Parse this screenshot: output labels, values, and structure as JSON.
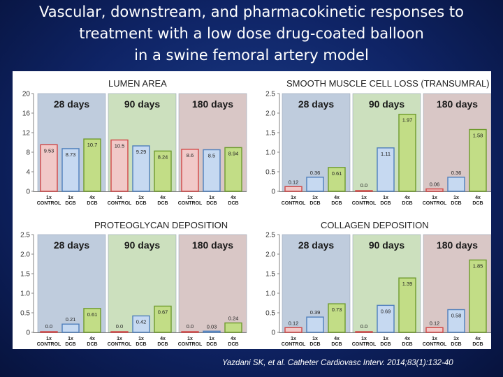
{
  "slide": {
    "title_lines": [
      "Vascular, downstream, and pharmacokinetic responses to",
      "treatment with a low dose drug-coated balloon",
      "in a swine femoral artery model"
    ],
    "citation": "Yazdani SK, et al. Catheter Cardiovasc Interv. 2014;83(1):132-40"
  },
  "colors": {
    "group_backgrounds": [
      "#bfccdd",
      "#cce0be",
      "#d9c7c6"
    ],
    "control": "#f1c9c8",
    "control_border": "#d24746",
    "dcb_1x": "#c6d9f1",
    "dcb_1x_border": "#4f7fbc",
    "dcb_4x": "#c2dd86",
    "dcb_4x_border": "#6f9b2e"
  },
  "chart_data": [
    {
      "type": "bar",
      "title": "LUMEN AREA",
      "groups": [
        "28 days",
        "90 days",
        "180 days"
      ],
      "categories": [
        "1x CONTROL",
        "1x DCB",
        "4x DCB"
      ],
      "series": [
        {
          "name": "1x CONTROL",
          "values": [
            9.53,
            10.5,
            8.6
          ],
          "labels": [
            "9.53",
            "10.5",
            "8.6"
          ]
        },
        {
          "name": "1x DCB",
          "values": [
            8.73,
            9.29,
            8.5
          ],
          "labels": [
            "8.73",
            "9.29",
            "8.5"
          ]
        },
        {
          "name": "4x DCB",
          "values": [
            10.7,
            8.24,
            8.94
          ],
          "labels": [
            "10.7",
            "8.24",
            "8.94"
          ]
        }
      ],
      "ylim": [
        0,
        20
      ],
      "yticks": [
        "0",
        "4",
        "8",
        "12",
        "16",
        "20"
      ],
      "ytick_values": [
        0,
        4,
        8,
        12,
        16,
        20
      ]
    },
    {
      "type": "bar",
      "title": "SMOOTH MUSCLE CELL LOSS (TRANSUMRAL)",
      "groups": [
        "28 days",
        "90 days",
        "180 days"
      ],
      "categories": [
        "1x CONTROL",
        "1x DCB",
        "4x DCB"
      ],
      "series": [
        {
          "name": "1x CONTROL",
          "values": [
            0.12,
            0.0,
            0.06
          ],
          "labels": [
            "0.12",
            "0.0",
            "0.06"
          ]
        },
        {
          "name": "1x DCB",
          "values": [
            0.36,
            1.11,
            0.36
          ],
          "labels": [
            "0.36",
            "1.11",
            "0.36"
          ]
        },
        {
          "name": "4x DCB",
          "values": [
            0.61,
            1.97,
            1.58
          ],
          "labels": [
            "0.61",
            "1.97",
            "1.58"
          ]
        }
      ],
      "ylim": [
        0,
        2.5
      ],
      "yticks": [
        "0",
        "0.5",
        "1.0",
        "1.5",
        "2.0",
        "2.5"
      ],
      "ytick_values": [
        0,
        0.5,
        1.0,
        1.5,
        2.0,
        2.5
      ]
    },
    {
      "type": "bar",
      "title": "PROTEOGLYCAN DEPOSITION",
      "groups": [
        "28 days",
        "90 days",
        "180 days"
      ],
      "categories": [
        "1x CONTROL",
        "1x DCB",
        "4x DCB"
      ],
      "series": [
        {
          "name": "1x CONTROL",
          "values": [
            0.0,
            0.0,
            0.0
          ],
          "labels": [
            "0.0",
            "0.0",
            "0.0"
          ]
        },
        {
          "name": "1x DCB",
          "values": [
            0.21,
            0.42,
            0.03
          ],
          "labels": [
            "0.21",
            "0.42",
            "0.03"
          ]
        },
        {
          "name": "4x DCB",
          "values": [
            0.61,
            0.67,
            0.24
          ],
          "labels": [
            "0.61",
            "0.67",
            "0.24"
          ]
        }
      ],
      "ylim": [
        0,
        2.5
      ],
      "yticks": [
        "0",
        "0.5",
        "1.0",
        "1.5",
        "2.0",
        "2.5"
      ],
      "ytick_values": [
        0,
        0.5,
        1.0,
        1.5,
        2.0,
        2.5
      ]
    },
    {
      "type": "bar",
      "title": "COLLAGEN DEPOSITION",
      "groups": [
        "28 days",
        "90 days",
        "180 days"
      ],
      "categories": [
        "1x CONTROL",
        "1x DCB",
        "4x DCB"
      ],
      "series": [
        {
          "name": "1x CONTROL",
          "values": [
            0.12,
            0.0,
            0.12
          ],
          "labels": [
            "0.12",
            "0.0",
            "0.12"
          ]
        },
        {
          "name": "1x DCB",
          "values": [
            0.39,
            0.69,
            0.58
          ],
          "labels": [
            "0.39",
            "0.69",
            "0.58"
          ]
        },
        {
          "name": "4x DCB",
          "values": [
            0.73,
            1.39,
            1.85
          ],
          "labels": [
            "0.73",
            "1.39",
            "1.85"
          ]
        }
      ],
      "ylim": [
        0,
        2.5
      ],
      "yticks": [
        "0",
        "0.5",
        "1.0",
        "1.5",
        "2.0",
        "2.5"
      ],
      "ytick_values": [
        0,
        0.5,
        1.0,
        1.5,
        2.0,
        2.5
      ]
    }
  ]
}
